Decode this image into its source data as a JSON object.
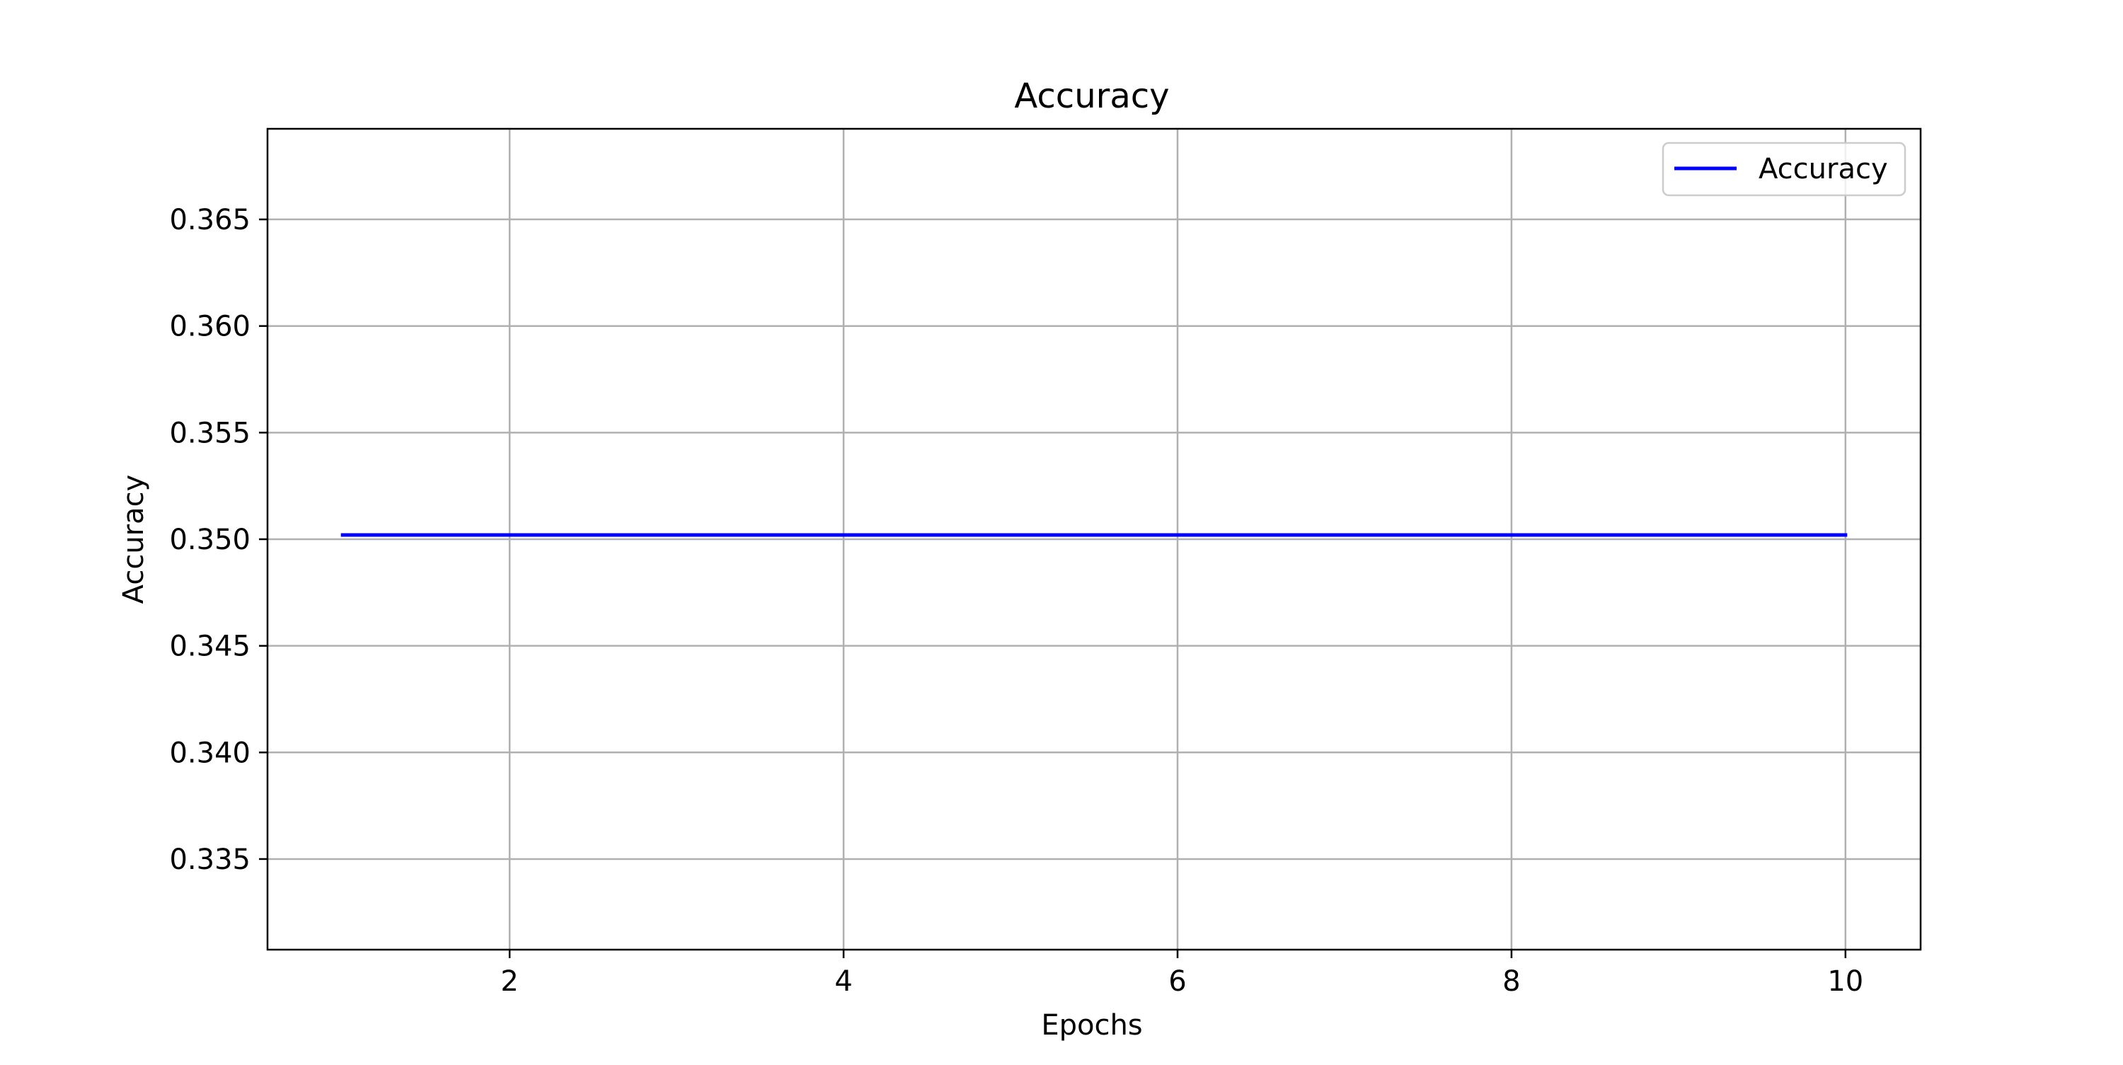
{
  "chart_data": {
    "type": "line",
    "title": "Accuracy",
    "xlabel": "Epochs",
    "ylabel": "Accuracy",
    "x": [
      1,
      2,
      3,
      4,
      5,
      6,
      7,
      8,
      9,
      10
    ],
    "series": [
      {
        "name": "Accuracy",
        "color": "#0000ff",
        "values": [
          0.3502,
          0.3502,
          0.3502,
          0.3502,
          0.3502,
          0.3502,
          0.3502,
          0.3502,
          0.3502,
          0.3502
        ]
      }
    ],
    "xlim": [
      0.55,
      10.45
    ],
    "ylim": [
      0.33075,
      0.36925
    ],
    "xticks": [
      2,
      4,
      6,
      8,
      10
    ],
    "xtick_labels": [
      "2",
      "4",
      "6",
      "8",
      "10"
    ],
    "yticks": [
      0.335,
      0.34,
      0.345,
      0.35,
      0.355,
      0.36,
      0.365
    ],
    "ytick_labels": [
      "0.335",
      "0.340",
      "0.345",
      "0.350",
      "0.355",
      "0.360",
      "0.365"
    ],
    "grid": true,
    "legend_position": "upper right"
  }
}
